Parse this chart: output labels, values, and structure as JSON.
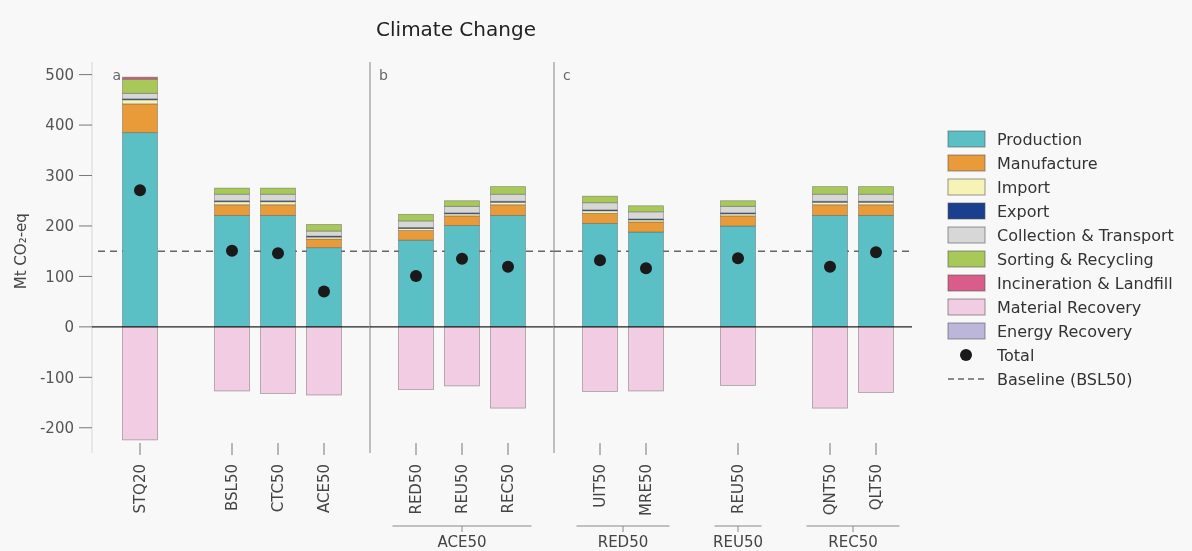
{
  "chart_data": [
    {
      "type": "bar",
      "ylabel": "Mt CO₂-eq",
      "stacked": true,
      "categories": [
        "STQ20",
        null,
        "BSL50",
        "CTC50",
        "ACE50"
      ],
      "ylim": [
        -250,
        525
      ],
      "yticks": [
        -200,
        -100,
        0,
        100,
        200,
        300,
        400,
        500
      ],
      "series": [
        {
          "color": "#5bbfc6",
          "values": [
            385,
            null,
            221,
            221,
            157
          ]
        },
        {
          "color": "#e99b3a",
          "values": [
            57,
            null,
            21,
            21,
            17
          ]
        },
        {
          "color": "#f7f2b6",
          "values": [
            8,
            null,
            6,
            6,
            4
          ]
        },
        {
          "color": "#1b3f8f",
          "values": [
            2,
            null,
            2,
            2,
            2
          ]
        },
        {
          "color": "#d7d7d7",
          "values": [
            11,
            null,
            13,
            13,
            10
          ]
        },
        {
          "color": "#a8c95a",
          "values": [
            28,
            null,
            12,
            12,
            13
          ]
        },
        {
          "color": "#d95c8a",
          "values": [
            4,
            null,
            0,
            0,
            0
          ]
        },
        {
          "color": "#f2cce2",
          "values": [
            -224,
            null,
            -127,
            -132,
            -135
          ]
        },
        {
          "color": "#bcb7da",
          "values": [
            0,
            null,
            0,
            0,
            0
          ]
        },
        {
          "type": "scatter",
          "marker": "circle",
          "color": "#1a1a1a",
          "values": [
            271,
            null,
            151,
            146,
            70
          ]
        }
      ],
      "ref_lines": [
        {
          "axis": "y",
          "value": 150,
          "line_style": "dashed",
          "color": "#666666"
        }
      ],
      "annotations": [
        "a"
      ]
    },
    {
      "type": "bar",
      "title": "Climate Change",
      "stacked": true,
      "tick_labels": "x",
      "categories": [
        "RED50",
        "REU50",
        "REC50"
      ],
      "ylim": [
        -250,
        525
      ],
      "series": [
        {
          "color": "#5bbfc6",
          "values": [
            172,
            201,
            221
          ]
        },
        {
          "color": "#e99b3a",
          "values": [
            19,
            19,
            21
          ]
        },
        {
          "color": "#f7f2b6",
          "values": [
            4,
            4,
            5
          ]
        },
        {
          "color": "#1b3f8f",
          "values": [
            2,
            2,
            2
          ]
        },
        {
          "color": "#d7d7d7",
          "values": [
            13,
            13,
            14
          ]
        },
        {
          "color": "#a8c95a",
          "values": [
            13,
            11,
            15
          ]
        },
        {
          "color": "#d95c8a",
          "values": [
            0,
            0,
            0
          ]
        },
        {
          "color": "#f2cce2",
          "values": [
            -124,
            -117,
            -161
          ]
        },
        {
          "color": "#bcb7da",
          "values": [
            0,
            0,
            0
          ]
        },
        {
          "type": "scatter",
          "marker": "circle",
          "color": "#1a1a1a",
          "values": [
            101,
            135,
            119
          ]
        }
      ],
      "ref_lines": [
        {
          "axis": "y",
          "value": 150,
          "line_style": "dashed",
          "color": "#666666"
        }
      ],
      "annotations": [
        "b",
        "ACE50"
      ]
    },
    {
      "type": "bar",
      "stacked": true,
      "tick_labels": "x",
      "legend": "right",
      "categories": [
        "UIT50",
        "MRE50",
        null,
        "REU50",
        null,
        "QNT50",
        "QLT50"
      ],
      "ylim": [
        -250,
        525
      ],
      "series": [
        {
          "name": "Production",
          "color": "#5bbfc6",
          "values": [
            205,
            188,
            null,
            200,
            null,
            221,
            221
          ]
        },
        {
          "name": "Manufacture",
          "color": "#e99b3a",
          "values": [
            20,
            20,
            null,
            20,
            null,
            21,
            21
          ]
        },
        {
          "name": "Import",
          "color": "#f7f2b6",
          "values": [
            5,
            4,
            null,
            4,
            null,
            5,
            5
          ]
        },
        {
          "name": "Export",
          "color": "#1b3f8f",
          "values": [
            2,
            2,
            null,
            2,
            null,
            2,
            2
          ]
        },
        {
          "name": "Collection & Transport",
          "color": "#d7d7d7",
          "values": [
            14,
            14,
            null,
            13,
            null,
            14,
            14
          ]
        },
        {
          "name": "Sorting & Recycling",
          "color": "#a8c95a",
          "values": [
            13,
            12,
            null,
            11,
            null,
            15,
            15
          ]
        },
        {
          "name": "Incineration & Landfill",
          "color": "#d95c8a",
          "values": [
            0,
            0,
            null,
            0,
            null,
            0,
            0
          ]
        },
        {
          "name": "Material Recovery",
          "color": "#f2cce2",
          "values": [
            -128,
            -127,
            null,
            -116,
            null,
            -161,
            -130
          ]
        },
        {
          "name": "Energy Recovery",
          "color": "#bcb7da",
          "values": [
            0,
            0,
            null,
            0,
            null,
            0,
            0
          ]
        },
        {
          "name": "Total",
          "type": "scatter",
          "marker": "circle",
          "color": "#1a1a1a",
          "values": [
            132,
            116,
            null,
            136,
            null,
            119,
            148
          ]
        }
      ],
      "ref_lines": [
        {
          "axis": "y",
          "value": 150,
          "label": "Baseline (BSL50)",
          "line_style": "dashed",
          "color": "#666666"
        }
      ],
      "annotations": [
        "c",
        "RED50",
        "REU50",
        "REC50"
      ]
    }
  ]
}
